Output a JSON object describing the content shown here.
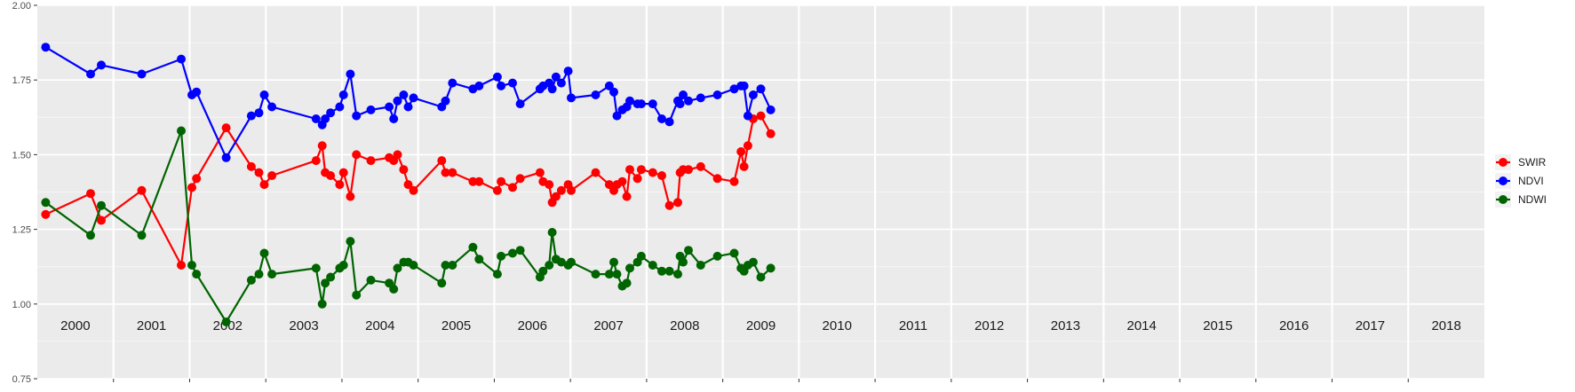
{
  "chart_data": {
    "type": "line",
    "ylim": [
      0.75,
      2.0
    ],
    "yticks": [
      0.75,
      1.0,
      1.25,
      1.5,
      1.75,
      2.0
    ],
    "ytick_labels": [
      "0.75",
      "1.00",
      "1.25",
      "1.50",
      "1.75",
      "2.00"
    ],
    "xlim": [
      2000.0,
      2019.0
    ],
    "year_labels": [
      "2000",
      "2001",
      "2002",
      "2003",
      "2004",
      "2005",
      "2006",
      "2007",
      "2008",
      "2009",
      "2010",
      "2011",
      "2012",
      "2013",
      "2014",
      "2015",
      "2016",
      "2017",
      "2018"
    ],
    "grid": true,
    "legend_position": "right",
    "series": [
      {
        "name": "SWIR",
        "color": "#ff0000",
        "x": [
          2000.11,
          2000.7,
          2000.84,
          2001.37,
          2001.89,
          2002.03,
          2002.09,
          2002.48,
          2002.81,
          2002.91,
          2002.98,
          2003.08,
          2003.66,
          2003.74,
          2003.78,
          2003.85,
          2003.97,
          2004.02,
          2004.11,
          2004.19,
          2004.38,
          2004.62,
          2004.68,
          2004.73,
          2004.81,
          2004.87,
          2004.94,
          2005.31,
          2005.36,
          2005.45,
          2005.72,
          2005.8,
          2006.04,
          2006.09,
          2006.24,
          2006.34,
          2006.6,
          2006.64,
          2006.72,
          2006.76,
          2006.81,
          2006.88,
          2006.97,
          2007.01,
          2007.33,
          2007.51,
          2007.57,
          2007.61,
          2007.68,
          2007.74,
          2007.78,
          2007.88,
          2007.93,
          2008.08,
          2008.2,
          2008.3,
          2008.41,
          2008.44,
          2008.48,
          2008.55,
          2008.71,
          2008.93,
          2009.15,
          2009.24,
          2009.28,
          2009.33,
          2009.4,
          2009.5,
          2009.63
        ],
        "y": [
          1.3,
          1.37,
          1.28,
          1.38,
          1.13,
          1.39,
          1.42,
          1.59,
          1.46,
          1.44,
          1.4,
          1.43,
          1.48,
          1.53,
          1.44,
          1.43,
          1.4,
          1.44,
          1.36,
          1.5,
          1.48,
          1.49,
          1.48,
          1.5,
          1.45,
          1.4,
          1.38,
          1.48,
          1.44,
          1.44,
          1.41,
          1.41,
          1.38,
          1.41,
          1.39,
          1.42,
          1.44,
          1.41,
          1.4,
          1.34,
          1.36,
          1.38,
          1.4,
          1.38,
          1.44,
          1.4,
          1.38,
          1.4,
          1.41,
          1.36,
          1.45,
          1.42,
          1.45,
          1.44,
          1.43,
          1.33,
          1.34,
          1.44,
          1.45,
          1.45,
          1.46,
          1.42,
          1.41,
          1.51,
          1.46,
          1.53,
          1.62,
          1.63,
          1.57
        ]
      },
      {
        "name": "NDVI",
        "color": "#0000ff",
        "x": [
          2000.11,
          2000.7,
          2000.84,
          2001.37,
          2001.89,
          2002.03,
          2002.09,
          2002.48,
          2002.81,
          2002.91,
          2002.98,
          2003.08,
          2003.66,
          2003.74,
          2003.78,
          2003.85,
          2003.97,
          2004.02,
          2004.11,
          2004.19,
          2004.38,
          2004.62,
          2004.68,
          2004.73,
          2004.81,
          2004.87,
          2004.94,
          2005.31,
          2005.36,
          2005.45,
          2005.72,
          2005.8,
          2006.04,
          2006.09,
          2006.24,
          2006.34,
          2006.6,
          2006.64,
          2006.72,
          2006.76,
          2006.81,
          2006.88,
          2006.97,
          2007.01,
          2007.33,
          2007.51,
          2007.57,
          2007.61,
          2007.68,
          2007.74,
          2007.78,
          2007.88,
          2007.93,
          2008.08,
          2008.2,
          2008.3,
          2008.41,
          2008.44,
          2008.48,
          2008.55,
          2008.71,
          2008.93,
          2009.15,
          2009.24,
          2009.28,
          2009.33,
          2009.4,
          2009.5,
          2009.63
        ],
        "y": [
          1.86,
          1.77,
          1.8,
          1.77,
          1.82,
          1.7,
          1.71,
          1.49,
          1.63,
          1.64,
          1.7,
          1.66,
          1.62,
          1.6,
          1.62,
          1.64,
          1.66,
          1.7,
          1.77,
          1.63,
          1.65,
          1.66,
          1.62,
          1.68,
          1.7,
          1.66,
          1.69,
          1.66,
          1.68,
          1.74,
          1.72,
          1.73,
          1.76,
          1.73,
          1.74,
          1.67,
          1.72,
          1.73,
          1.74,
          1.72,
          1.76,
          1.74,
          1.78,
          1.69,
          1.7,
          1.73,
          1.71,
          1.63,
          1.65,
          1.66,
          1.68,
          1.67,
          1.67,
          1.67,
          1.62,
          1.61,
          1.68,
          1.67,
          1.7,
          1.68,
          1.69,
          1.7,
          1.72,
          1.73,
          1.73,
          1.63,
          1.7,
          1.72,
          1.65
        ]
      },
      {
        "name": "NDWI",
        "color": "#006400",
        "x": [
          2000.11,
          2000.7,
          2000.84,
          2001.37,
          2001.89,
          2002.03,
          2002.09,
          2002.48,
          2002.81,
          2002.91,
          2002.98,
          2003.08,
          2003.66,
          2003.74,
          2003.78,
          2003.85,
          2003.97,
          2004.02,
          2004.11,
          2004.19,
          2004.38,
          2004.62,
          2004.68,
          2004.73,
          2004.81,
          2004.87,
          2004.94,
          2005.31,
          2005.36,
          2005.45,
          2005.72,
          2005.8,
          2006.04,
          2006.09,
          2006.24,
          2006.34,
          2006.6,
          2006.64,
          2006.72,
          2006.76,
          2006.81,
          2006.88,
          2006.97,
          2007.01,
          2007.33,
          2007.51,
          2007.57,
          2007.61,
          2007.68,
          2007.74,
          2007.78,
          2007.88,
          2007.93,
          2008.08,
          2008.2,
          2008.3,
          2008.41,
          2008.44,
          2008.48,
          2008.55,
          2008.71,
          2008.93,
          2009.15,
          2009.24,
          2009.28,
          2009.33,
          2009.4,
          2009.5,
          2009.63
        ],
        "y": [
          1.34,
          1.23,
          1.33,
          1.23,
          1.58,
          1.13,
          1.1,
          0.94,
          1.08,
          1.1,
          1.17,
          1.1,
          1.12,
          1.0,
          1.07,
          1.09,
          1.12,
          1.13,
          1.21,
          1.03,
          1.08,
          1.07,
          1.05,
          1.12,
          1.14,
          1.14,
          1.13,
          1.07,
          1.13,
          1.13,
          1.19,
          1.15,
          1.1,
          1.16,
          1.17,
          1.18,
          1.09,
          1.11,
          1.13,
          1.24,
          1.15,
          1.14,
          1.13,
          1.14,
          1.1,
          1.1,
          1.14,
          1.1,
          1.06,
          1.07,
          1.12,
          1.14,
          1.16,
          1.13,
          1.11,
          1.11,
          1.1,
          1.16,
          1.14,
          1.18,
          1.13,
          1.16,
          1.17,
          1.12,
          1.11,
          1.13,
          1.14,
          1.09,
          1.12
        ]
      }
    ]
  }
}
